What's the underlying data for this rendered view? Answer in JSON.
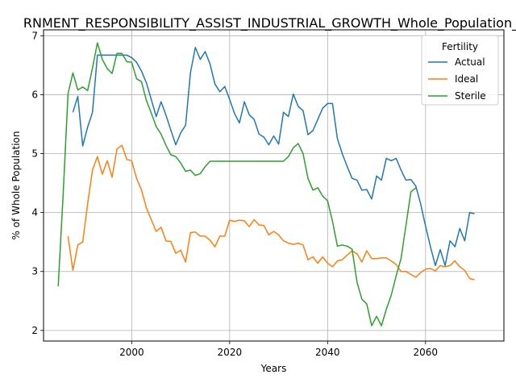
{
  "chart_data": {
    "type": "line",
    "title": "RNMENT_RESPONSIBILITY_ASSIST_INDUSTRIAL_GROWTH_Whole_Population_",
    "xlabel": "Years",
    "ylabel": "% of Whole Population",
    "xlim": [
      1982,
      2076
    ],
    "ylim": [
      1.82,
      7.1
    ],
    "xticks": [
      2000,
      2020,
      2040,
      2060
    ],
    "yticks": [
      2,
      3,
      4,
      5,
      6,
      7
    ],
    "grid": true,
    "legend": {
      "title": "Fertility",
      "position": "top-right"
    },
    "series": [
      {
        "name": "Actual",
        "color": "#1f77b4",
        "x": [
          1988,
          1989,
          1990,
          1991,
          1992,
          1993,
          1994,
          1995,
          1996,
          1997,
          1998,
          1999,
          2000,
          2001,
          2002,
          2003,
          2004,
          2005,
          2006,
          2007,
          2008,
          2009,
          2010,
          2011,
          2012,
          2013,
          2014,
          2015,
          2016,
          2017,
          2018,
          2019,
          2020,
          2021,
          2022,
          2023,
          2024,
          2025,
          2026,
          2027,
          2028,
          2029,
          2030,
          2031,
          2032,
          2033,
          2034,
          2035,
          2036,
          2037,
          2038,
          2039,
          2040,
          2041,
          2042,
          2043,
          2044,
          2045,
          2046,
          2047,
          2048,
          2049,
          2050,
          2051,
          2052,
          2053,
          2054,
          2055,
          2056,
          2057,
          2058,
          2059,
          2060,
          2061,
          2062,
          2063,
          2064,
          2065,
          2066,
          2067,
          2068,
          2069,
          2070
        ],
        "values": [
          5.7,
          5.97,
          5.13,
          5.45,
          5.7,
          6.67,
          6.67,
          6.67,
          6.67,
          6.67,
          6.67,
          6.67,
          6.63,
          6.55,
          6.4,
          6.2,
          5.92,
          5.63,
          5.88,
          5.65,
          5.4,
          5.15,
          5.35,
          5.48,
          6.37,
          6.8,
          6.6,
          6.73,
          6.52,
          6.18,
          6.05,
          6.14,
          5.92,
          5.68,
          5.52,
          5.88,
          5.66,
          5.58,
          5.33,
          5.28,
          5.15,
          5.3,
          5.16,
          5.7,
          5.63,
          6.01,
          5.8,
          5.73,
          5.32,
          5.39,
          5.58,
          5.77,
          5.85,
          5.85,
          5.25,
          5.0,
          4.78,
          4.58,
          4.55,
          4.38,
          4.39,
          4.23,
          4.62,
          4.55,
          4.92,
          4.88,
          4.92,
          4.72,
          4.55,
          4.56,
          4.45,
          4.15,
          3.77,
          3.42,
          3.1,
          3.37,
          3.1,
          3.52,
          3.42,
          3.73,
          3.52,
          4.0,
          3.98
        ]
      },
      {
        "name": "Ideal",
        "color": "#ff7f0e",
        "x": [
          1987,
          1988,
          1989,
          1990,
          1991,
          1992,
          1993,
          1994,
          1995,
          1996,
          1997,
          1998,
          1999,
          2000,
          2001,
          2002,
          2003,
          2004,
          2005,
          2006,
          2007,
          2008,
          2009,
          2010,
          2011,
          2012,
          2013,
          2014,
          2015,
          2016,
          2017,
          2018,
          2019,
          2020,
          2021,
          2022,
          2023,
          2024,
          2025,
          2026,
          2027,
          2028,
          2029,
          2030,
          2031,
          2032,
          2033,
          2034,
          2035,
          2036,
          2037,
          2038,
          2039,
          2040,
          2041,
          2042,
          2043,
          2044,
          2045,
          2046,
          2047,
          2048,
          2049,
          2050,
          2051,
          2052,
          2053,
          2054,
          2055,
          2056,
          2057,
          2058,
          2059,
          2060,
          2061,
          2062,
          2063,
          2064,
          2065,
          2066,
          2067,
          2068,
          2069,
          2070
        ],
        "values": [
          3.6,
          3.02,
          3.45,
          3.5,
          4.15,
          4.72,
          4.95,
          4.65,
          4.88,
          4.6,
          5.08,
          5.14,
          4.9,
          4.88,
          4.58,
          4.38,
          4.08,
          3.88,
          3.68,
          3.75,
          3.52,
          3.51,
          3.31,
          3.36,
          3.16,
          3.66,
          3.67,
          3.6,
          3.6,
          3.53,
          3.42,
          3.6,
          3.6,
          3.87,
          3.85,
          3.87,
          3.86,
          3.76,
          3.88,
          3.79,
          3.78,
          3.62,
          3.68,
          3.62,
          3.52,
          3.48,
          3.46,
          3.48,
          3.45,
          3.2,
          3.25,
          3.14,
          3.25,
          3.14,
          3.08,
          3.18,
          3.2,
          3.28,
          3.35,
          3.3,
          3.16,
          3.35,
          3.22,
          3.22,
          3.23,
          3.23,
          3.18,
          3.12,
          3.0,
          3.0,
          2.95,
          2.9,
          2.98,
          3.04,
          3.05,
          3.01,
          3.1,
          3.08,
          3.1,
          3.18,
          3.08,
          3.02,
          2.88,
          2.86
        ]
      },
      {
        "name": "Sterile",
        "color": "#2ca02c",
        "x": [
          1985,
          1986,
          1987,
          1988,
          1989,
          1990,
          1991,
          1992,
          1993,
          1994,
          1995,
          1996,
          1997,
          1998,
          1999,
          2000,
          2001,
          2002,
          2003,
          2004,
          2005,
          2006,
          2007,
          2008,
          2009,
          2010,
          2011,
          2012,
          2013,
          2014,
          2015,
          2016,
          2017,
          2018,
          2019,
          2020,
          2021,
          2022,
          2023,
          2024,
          2025,
          2026,
          2027,
          2028,
          2029,
          2030,
          2031,
          2032,
          2033,
          2034,
          2035,
          2036,
          2037,
          2038,
          2039,
          2040,
          2041,
          2042,
          2043,
          2044,
          2045,
          2046,
          2047,
          2048,
          2049,
          2050,
          2051,
          2052,
          2053,
          2054,
          2055,
          2056,
          2057,
          2058
        ],
        "values": [
          2.75,
          4.3,
          6.02,
          6.37,
          6.08,
          6.13,
          6.07,
          6.45,
          6.88,
          6.6,
          6.44,
          6.36,
          6.7,
          6.7,
          6.56,
          6.55,
          6.27,
          6.22,
          5.9,
          5.69,
          5.46,
          5.33,
          5.14,
          4.98,
          4.95,
          4.84,
          4.7,
          4.72,
          4.63,
          4.66,
          4.78,
          4.87,
          4.87,
          4.87,
          4.87,
          4.87,
          4.87,
          4.87,
          4.87,
          4.87,
          4.87,
          4.87,
          4.87,
          4.87,
          4.87,
          4.87,
          4.87,
          4.95,
          5.1,
          5.17,
          5.0,
          4.58,
          4.38,
          4.42,
          4.28,
          4.2,
          3.85,
          3.43,
          3.45,
          3.43,
          3.38,
          2.82,
          2.53,
          2.45,
          2.08,
          2.24,
          2.08,
          2.36,
          2.6,
          2.93,
          3.22,
          3.78,
          4.35,
          4.42
        ]
      }
    ]
  }
}
